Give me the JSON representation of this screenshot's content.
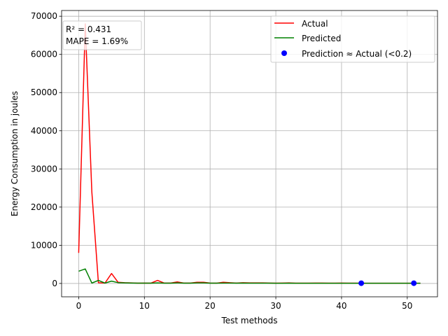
{
  "chart_data": {
    "type": "line",
    "xlabel": "Test methods",
    "ylabel": "Energy Consumption in joules",
    "xlim": [
      -2.6,
      54.6
    ],
    "ylim": [
      -3500,
      71500
    ],
    "xticks": [
      0,
      10,
      20,
      30,
      40,
      50
    ],
    "yticks": [
      0,
      10000,
      20000,
      30000,
      40000,
      50000,
      60000,
      70000
    ],
    "grid": true,
    "legend_position": "top-right",
    "annotation": {
      "lines": [
        "R² = 0.431",
        "MAPE = 1.69%"
      ],
      "position": "top-left"
    },
    "x": [
      0,
      1,
      2,
      3,
      4,
      5,
      6,
      7,
      8,
      9,
      10,
      11,
      12,
      13,
      14,
      15,
      16,
      17,
      18,
      19,
      20,
      21,
      22,
      23,
      24,
      25,
      26,
      27,
      28,
      29,
      30,
      31,
      32,
      33,
      34,
      35,
      36,
      37,
      38,
      39,
      40,
      41,
      42,
      43,
      44,
      45,
      46,
      47,
      48,
      49,
      50,
      51,
      52
    ],
    "series": [
      {
        "name": "Actual",
        "color": "#ff0000",
        "kind": "line",
        "values": [
          8000,
          68000,
          24000,
          200,
          100,
          2600,
          300,
          200,
          150,
          80,
          100,
          80,
          800,
          100,
          100,
          400,
          100,
          100,
          300,
          300,
          100,
          80,
          300,
          200,
          100,
          200,
          150,
          150,
          150,
          100,
          80,
          100,
          150,
          80,
          80,
          80,
          100,
          100,
          80,
          80,
          100,
          80,
          80,
          60,
          60,
          60,
          60,
          60,
          60,
          60,
          60,
          60,
          60
        ]
      },
      {
        "name": "Predicted",
        "color": "#008000",
        "kind": "line",
        "values": [
          3200,
          3800,
          100,
          800,
          100,
          600,
          200,
          150,
          100,
          80,
          80,
          80,
          150,
          80,
          80,
          150,
          80,
          80,
          150,
          150,
          80,
          80,
          100,
          100,
          80,
          100,
          80,
          80,
          80,
          80,
          60,
          60,
          80,
          60,
          60,
          60,
          60,
          60,
          60,
          60,
          60,
          60,
          60,
          60,
          60,
          60,
          60,
          60,
          60,
          60,
          60,
          60,
          60
        ]
      },
      {
        "name": "Prediction ≈ Actual (<0.2)",
        "color": "#0000ff",
        "kind": "scatter",
        "points": [
          [
            43,
            60
          ],
          [
            51,
            60
          ]
        ]
      }
    ]
  }
}
